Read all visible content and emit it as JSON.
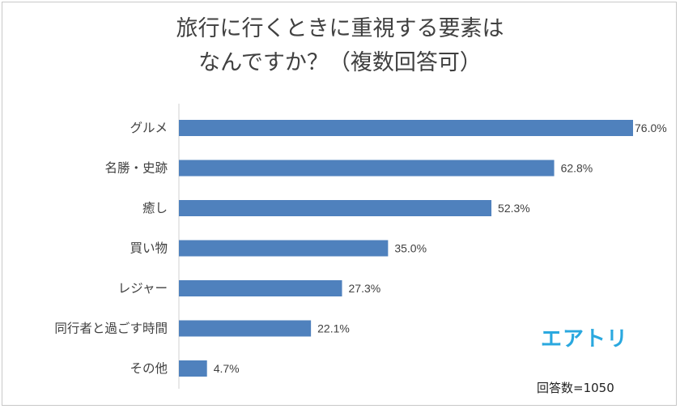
{
  "chart_data": {
    "type": "bar",
    "orientation": "horizontal",
    "title_line1": "旅行に行くときに重視する要素は",
    "title_line2": "なんですか？（複数回答可）",
    "categories": [
      "グルメ",
      "名勝・史跡",
      "癒し",
      "買い物",
      "レジャー",
      "同行者と過ごす時間",
      "その他"
    ],
    "values": [
      76.0,
      62.8,
      52.3,
      35.0,
      27.3,
      22.1,
      4.7
    ],
    "value_labels": [
      "76.0%",
      "62.8%",
      "52.3%",
      "35.0%",
      "27.3%",
      "22.1%",
      "4.7%"
    ],
    "xlim": [
      0,
      76
    ],
    "bar_color": "#4f81bd",
    "grid": false,
    "legend": "none"
  },
  "brand": {
    "logo_text": "エアトリ",
    "logo_color": "#2aa8df"
  },
  "footnote": "回答数=1050"
}
